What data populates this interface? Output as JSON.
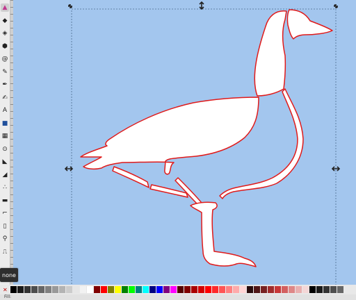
{
  "app": {
    "fill_style_indicator": "none",
    "status_fill_label": "Fill:"
  },
  "colors": {
    "canvas_bg": "#a3c6ee",
    "shape_fill": "#ffffff",
    "shape_stroke": "#e01a1a",
    "selection_dash": "#4b6c8f"
  },
  "tools": [
    {
      "icon": "pointer-icon"
    },
    {
      "icon": "node-tool-icon"
    },
    {
      "icon": "zoom-tool-icon"
    },
    {
      "icon": "box3d-tool-icon"
    },
    {
      "icon": "spiral-tool-icon"
    },
    {
      "icon": "pencil-tool-icon"
    },
    {
      "icon": "pen-tool-icon"
    },
    {
      "icon": "calligraphy-tool-icon"
    },
    {
      "icon": "text-tool-icon"
    },
    {
      "icon": "rect-tool-icon"
    },
    {
      "icon": "gradient-tool-icon"
    },
    {
      "icon": "dropper-tool-icon"
    },
    {
      "icon": "paint-bucket-icon"
    },
    {
      "icon": "tweak-tool-icon"
    },
    {
      "icon": "spray-tool-icon"
    },
    {
      "icon": "eraser-tool-icon"
    },
    {
      "icon": "connector-tool-icon"
    },
    {
      "icon": "pages-tool-icon"
    },
    {
      "icon": "zoom-icon"
    },
    {
      "icon": "measure-tool-icon"
    }
  ],
  "palette": [
    "#000000",
    "#1a1a1a",
    "#333333",
    "#4d4d4d",
    "#666666",
    "#808080",
    "#999999",
    "#b3b3b3",
    "#cccccc",
    "#e6e6e6",
    "#f2f2f2",
    "#ffffff",
    "#800000",
    "#ff0000",
    "#808000",
    "#ffff00",
    "#008000",
    "#00ff00",
    "#008080",
    "#00ffff",
    "#000080",
    "#0000ff",
    "#800080",
    "#ff00ff",
    "#550000",
    "#800000",
    "#aa0000",
    "#d40000",
    "#ff0000",
    "#ff2a2a",
    "#ff5555",
    "#ff8080",
    "#ffaaaa",
    "#ffd5d5",
    "#280b0b",
    "#501616",
    "#782121",
    "#a02c2c",
    "#c83737",
    "#d35f5f",
    "#de8787",
    "#e9afaf",
    "#f4d7d7",
    "#000000",
    "#1a1a1a",
    "#333333",
    "#4d4d4d",
    "#666666"
  ]
}
